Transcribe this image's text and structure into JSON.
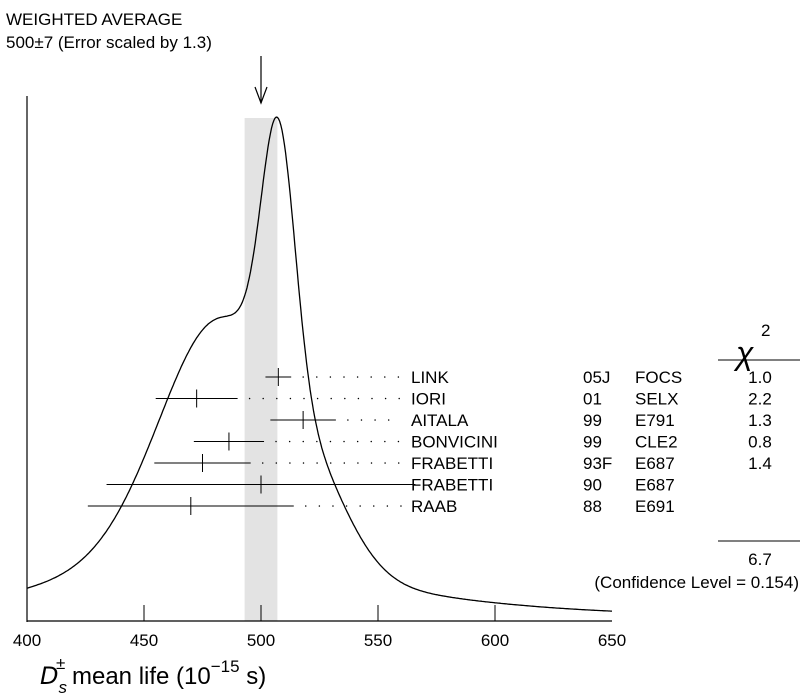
{
  "chart_data": {
    "type": "scatter",
    "title_line1": "WEIGHTED AVERAGE",
    "title_line2": "500±7 (Error scaled by 1.3)",
    "xlabel_main": "D",
    "xlabel_sub": "s",
    "xlabel_sup": "±",
    "xlabel_text": " mean life (10",
    "xlabel_exp": "−15",
    "xlabel_end": " s)",
    "xlim": [
      400,
      650
    ],
    "xticks": [
      400,
      450,
      500,
      550,
      600,
      650
    ],
    "average": {
      "value": 500,
      "error": 7,
      "scale_factor": 1.3
    },
    "chi2_header": "χ",
    "chi2_sup": "2",
    "measurements": [
      {
        "author": "LINK",
        "year": "05J",
        "experiment": "FOCS",
        "chi2": "1.0",
        "value": 507.4,
        "error": 5.5
      },
      {
        "author": "IORI",
        "year": "01",
        "experiment": "SELX",
        "chi2": "2.2",
        "value": 472.5,
        "error": 17.5
      },
      {
        "author": "AITALA",
        "year": "99",
        "experiment": "E791",
        "chi2": "1.3",
        "value": 518,
        "error": 14
      },
      {
        "author": "BONVICINI",
        "year": "99",
        "experiment": "CLE2",
        "chi2": "0.8",
        "value": 486.3,
        "error": 15
      },
      {
        "author": "FRABETTI",
        "year": "93F",
        "experiment": "E687",
        "chi2": "1.4",
        "value": 475,
        "error": 20.6
      },
      {
        "author": "FRABETTI",
        "year": "90",
        "experiment": "E687",
        "chi2": "",
        "value": 500,
        "error": 66
      },
      {
        "author": "RAAB",
        "year": "88",
        "experiment": "E691",
        "chi2": "",
        "value": 470,
        "error": 44
      }
    ],
    "chi2_total": "6.7",
    "confidence_level": "(Confidence Level = 0.154)",
    "grid": false,
    "legend": "right"
  }
}
